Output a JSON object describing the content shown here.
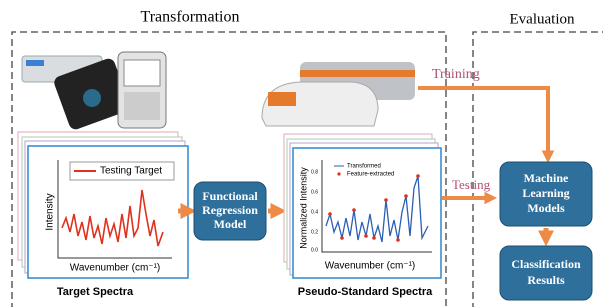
{
  "headers": {
    "transformation": "Transformation",
    "evaluation": "Evaluation"
  },
  "flows": {
    "training": "Training",
    "testing": "Testing"
  },
  "target_panel": {
    "legend": "Testing Target",
    "y_label": "Intensity",
    "x_label": "Wavenumber (cm⁻¹)",
    "caption": "Target Spectra"
  },
  "model_box": {
    "lines": [
      "Functional",
      "Regression",
      "Model"
    ]
  },
  "pseudo_panel": {
    "legend": [
      "Transformed",
      "Feature-extracted"
    ],
    "y_label": "Normalized Intensity",
    "y_ticks": [
      "0.8",
      "0.6",
      "0.4",
      "0.2",
      "0.0"
    ],
    "x_label": "Wavenumber (cm⁻¹)",
    "caption": "Pseudo-Standard Spectra"
  },
  "ml_box": {
    "lines": [
      "Machine",
      "Learning",
      "Models"
    ]
  },
  "results_box": {
    "lines": [
      "Classification",
      "Results"
    ]
  }
}
